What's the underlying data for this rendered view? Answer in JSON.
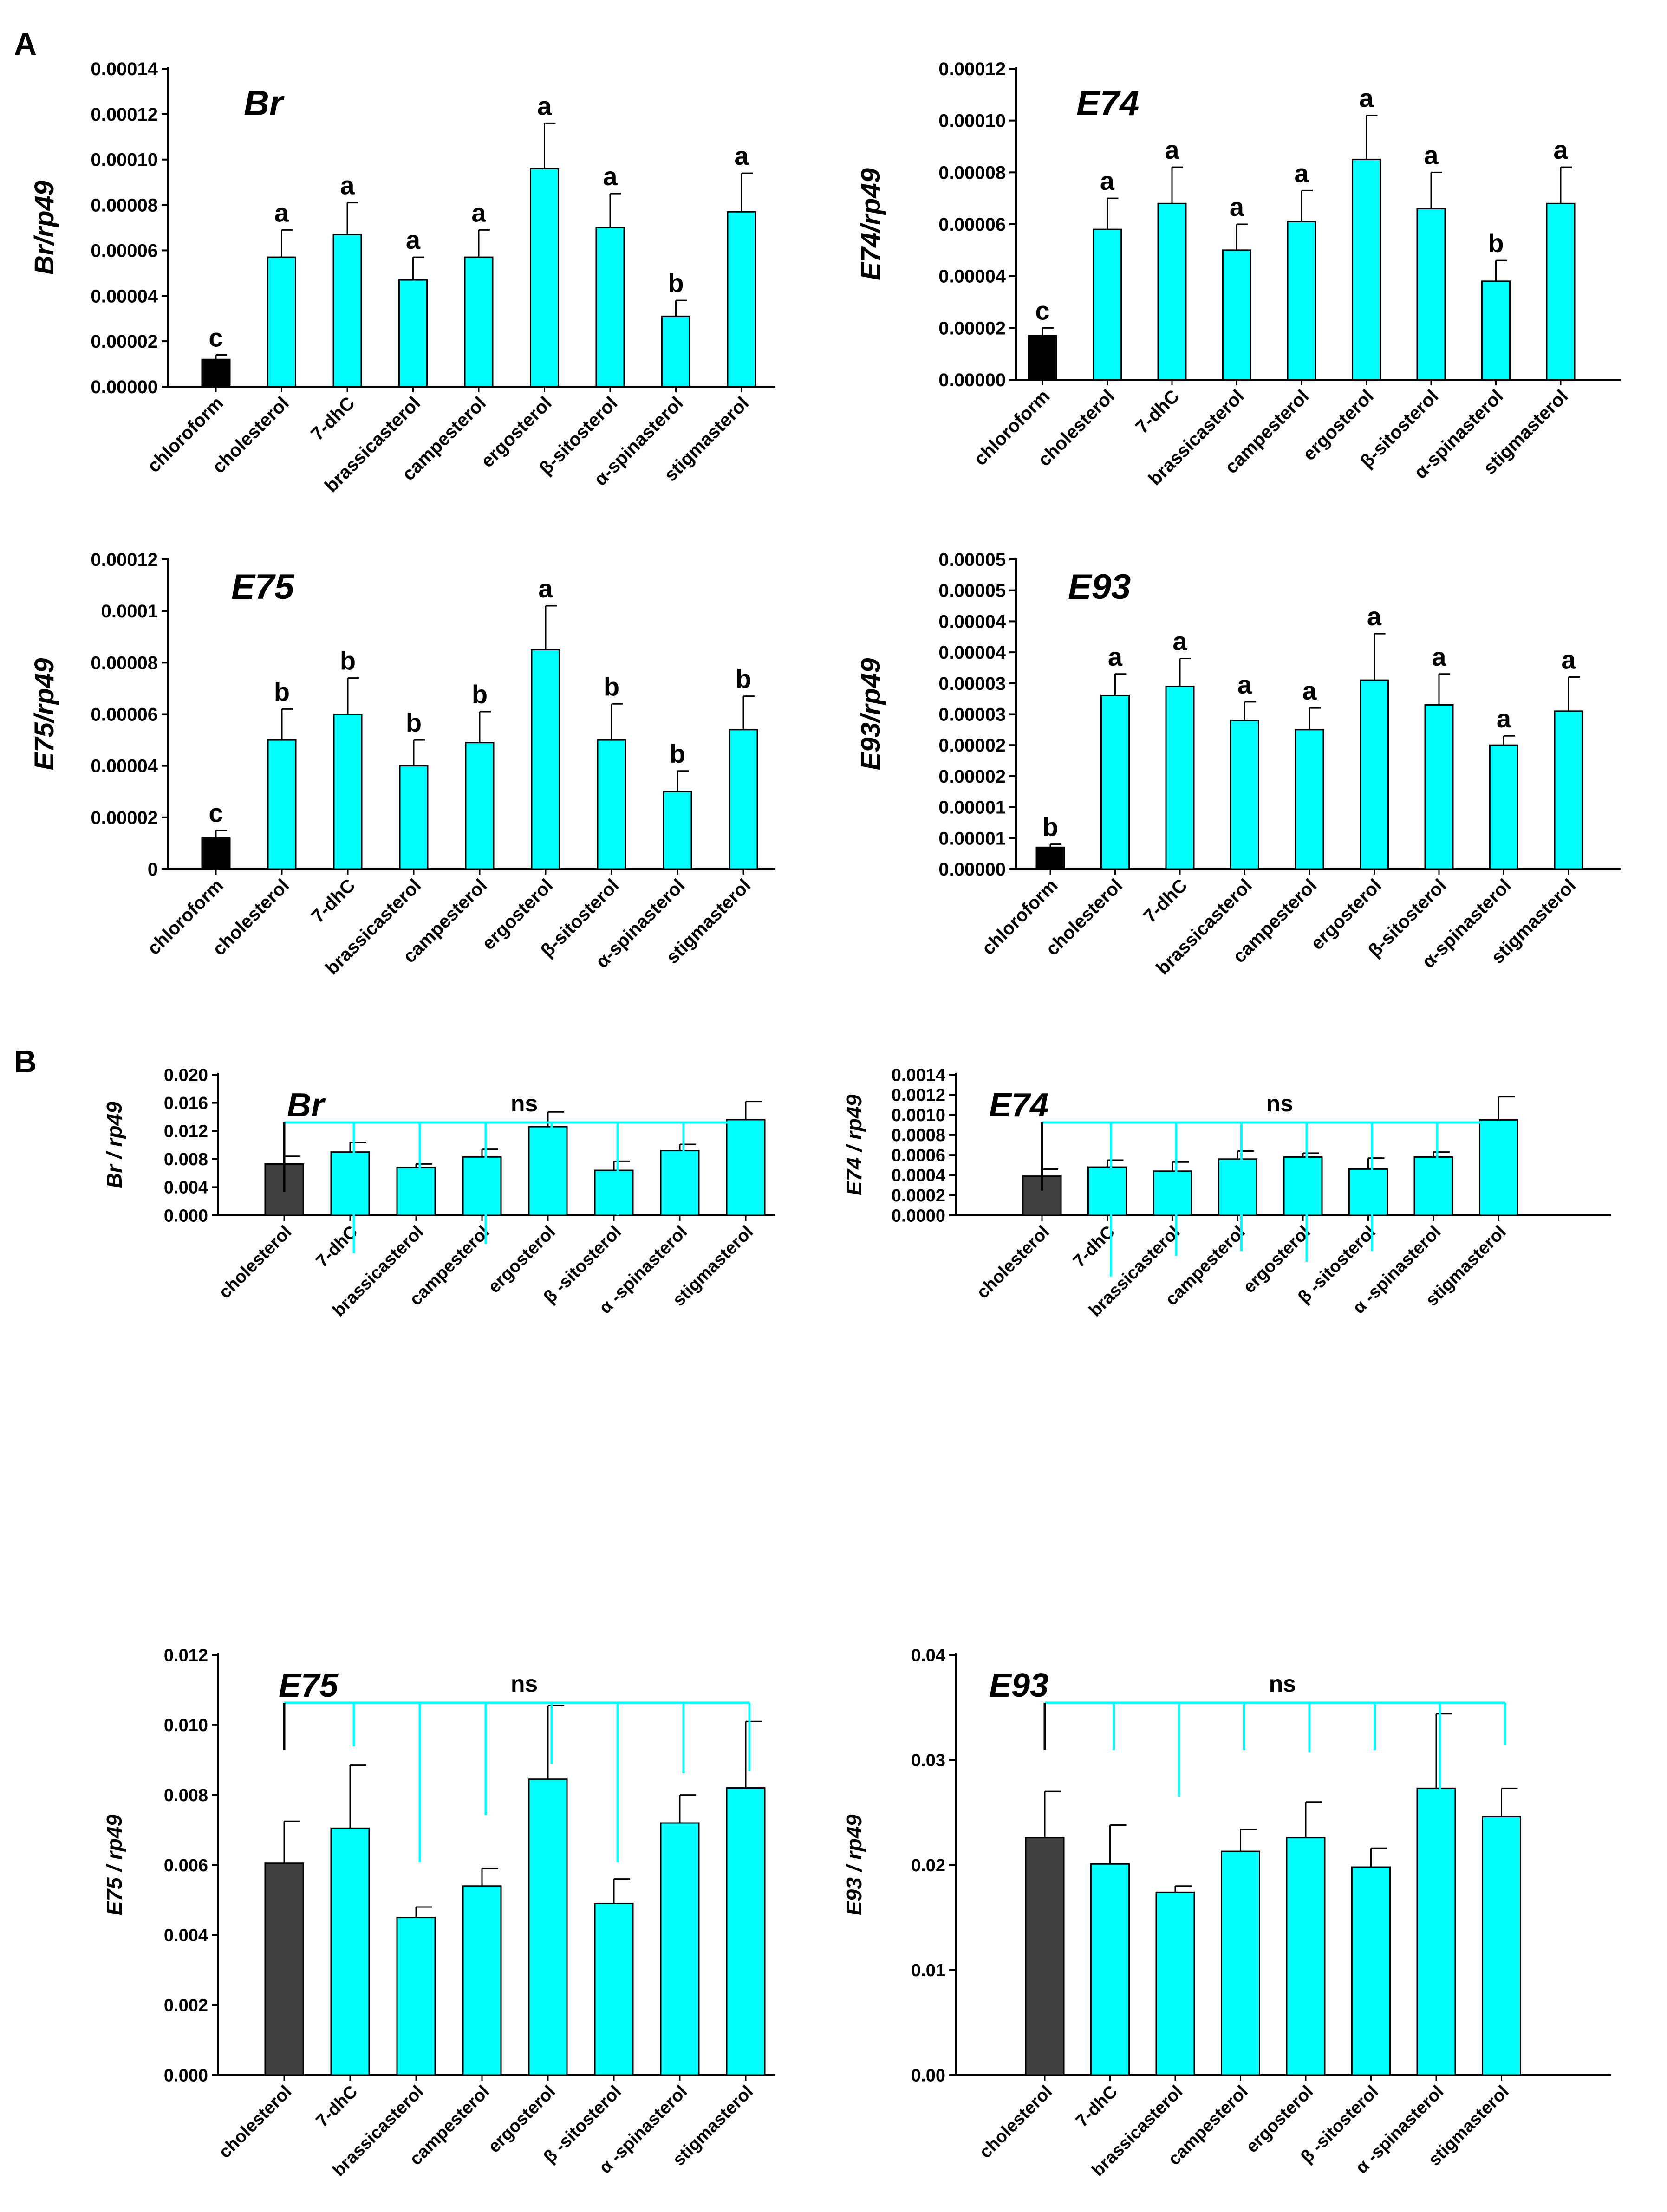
{
  "figure": {
    "panel_labels": [
      "A",
      "B"
    ],
    "colors": {
      "bar_fill_control_A": "#000000",
      "bar_fill_control_B": "#404040",
      "bar_fill_treatment": "#00FFFF",
      "bar_stroke": "#000000",
      "bracket": "#00FFFF",
      "control_bracket": "#000000",
      "text": "#000000"
    }
  },
  "chart_data": [
    {
      "id": "A-Br",
      "panel": "A",
      "type": "bar",
      "title": "Br",
      "ylabel": "Br/rp49",
      "xlabel": "",
      "categories": [
        "chloroform",
        "cholesterol",
        "7-dhC",
        "brassicasterol",
        "campesterol",
        "ergosterol",
        "β-sitosterol",
        "α-spinasterol",
        "stigmasterol"
      ],
      "values": [
        1.2e-05,
        5.7e-05,
        6.7e-05,
        4.7e-05,
        5.7e-05,
        9.6e-05,
        7e-05,
        3.1e-05,
        7.7e-05
      ],
      "errors": [
        2e-06,
        1.2e-05,
        1.4e-05,
        1e-05,
        1.2e-05,
        2e-05,
        1.5e-05,
        7e-06,
        1.7e-05
      ],
      "annotations": [
        "c",
        "a",
        "a",
        "a",
        "a",
        "a",
        "a",
        "b",
        "a"
      ],
      "ylim": [
        0,
        0.00014
      ],
      "yticks": [
        "0.00000",
        "0.00002",
        "0.00004",
        "0.00006",
        "0.00008",
        "0.00010",
        "0.00012",
        "0.00014"
      ]
    },
    {
      "id": "A-E74",
      "panel": "A",
      "type": "bar",
      "title": "E74",
      "ylabel": "E74/rp49",
      "xlabel": "",
      "categories": [
        "chloroform",
        "cholesterol",
        "7-dhC",
        "brassicasterol",
        "campesterol",
        "ergosterol",
        "β-sitosterol",
        "α-spinasterol",
        "stigmasterol"
      ],
      "values": [
        1.7e-05,
        5.8e-05,
        6.8e-05,
        5e-05,
        6.1e-05,
        8.5e-05,
        6.6e-05,
        3.8e-05,
        6.8e-05
      ],
      "errors": [
        3e-06,
        1.2e-05,
        1.4e-05,
        1e-05,
        1.2e-05,
        1.7e-05,
        1.4e-05,
        8e-06,
        1.4e-05
      ],
      "annotations": [
        "c",
        "a",
        "a",
        "a",
        "a",
        "a",
        "a",
        "b",
        "a"
      ],
      "ylim": [
        0,
        0.00012
      ],
      "yticks": [
        "0.00000",
        "0.00002",
        "0.00004",
        "0.00006",
        "0.00008",
        "0.00010",
        "0.00012"
      ]
    },
    {
      "id": "A-E75",
      "panel": "A",
      "type": "bar",
      "title": "E75",
      "ylabel": "E75/rp49",
      "xlabel": "",
      "categories": [
        "chloroform",
        "cholesterol",
        "7-dhC",
        "brassicasterol",
        "campesterol",
        "ergosterol",
        "β-sitosterol",
        "α-spinasterol",
        "stigmasterol"
      ],
      "values": [
        1.2e-05,
        5e-05,
        6e-05,
        4e-05,
        4.9e-05,
        8.5e-05,
        5e-05,
        3e-05,
        5.4e-05
      ],
      "errors": [
        3e-06,
        1.2e-05,
        1.4e-05,
        1e-05,
        1.2e-05,
        1.7e-05,
        1.4e-05,
        8e-06,
        1.3e-05
      ],
      "annotations": [
        "c",
        "b",
        "b",
        "b",
        "b",
        "a",
        "b",
        "b",
        "b"
      ],
      "ylim": [
        0,
        0.00012
      ],
      "yticks": [
        "0",
        "0.00002",
        "0.00004",
        "0.00006",
        "0.00008",
        "0.0001",
        "0.00012"
      ]
    },
    {
      "id": "A-E93",
      "panel": "A",
      "type": "bar",
      "title": "E93",
      "ylabel": "E93/rp49",
      "xlabel": "",
      "categories": [
        "chloroform",
        "cholesterol",
        "7-dhC",
        "brassicasterol",
        "campesterol",
        "ergosterol",
        "β-sitosterol",
        "α-spinasterol",
        "stigmasterol"
      ],
      "values": [
        3.5e-06,
        2.8e-05,
        2.95e-05,
        2.4e-05,
        2.25e-05,
        3.05e-05,
        2.65e-05,
        2e-05,
        2.55e-05
      ],
      "errors": [
        5e-07,
        3.5e-06,
        4.5e-06,
        3e-06,
        3.5e-06,
        7.5e-06,
        5e-06,
        1.5e-06,
        5.5e-06
      ],
      "annotations": [
        "b",
        "a",
        "a",
        "a",
        "a",
        "a",
        "a",
        "a",
        "a"
      ],
      "ylim": [
        0,
        5e-05
      ],
      "yticks": [
        "0.00000",
        "0.00001",
        "0.00001",
        "0.00002",
        "0.00002",
        "0.00003",
        "0.00003",
        "0.00004",
        "0.00004",
        "0.00005",
        "0.00005"
      ]
    },
    {
      "id": "B-Br",
      "panel": "B",
      "type": "bar",
      "title": "Br",
      "ylabel": "Br / rp49",
      "xlabel": "",
      "significance": "ns",
      "categories": [
        "cholesterol",
        "7-dhC",
        "brassicasterol",
        "campesterol",
        "ergosterol",
        "β -sitosterol",
        "α -spinasterol",
        "stigmasterol"
      ],
      "values": [
        0.0073,
        0.009,
        0.0068,
        0.0083,
        0.0126,
        0.0064,
        0.0092,
        0.0136
      ],
      "errors": [
        0.0011,
        0.0014,
        0.0005,
        0.0011,
        0.0021,
        0.0013,
        0.0009,
        0.0026
      ],
      "ylim": [
        0,
        0.02
      ],
      "yticks": [
        "0.000",
        "0.004",
        "0.008",
        "0.012",
        "0.016",
        "0.020"
      ]
    },
    {
      "id": "B-E74",
      "panel": "B",
      "type": "bar",
      "title": "E74",
      "ylabel": "E74 / rp49",
      "xlabel": "",
      "significance": "ns",
      "categories": [
        "cholesterol",
        "7-dhC",
        "brassicasterol",
        "campesterol",
        "ergosterol",
        "β -sitosterol",
        "α -spinasterol",
        "stigmasterol"
      ],
      "values": [
        0.00039,
        0.00048,
        0.00044,
        0.00056,
        0.00058,
        0.00046,
        0.00058,
        0.00095
      ],
      "errors": [
        7e-05,
        7e-05,
        9e-05,
        8e-05,
        4e-05,
        0.00011,
        5e-05,
        0.00023
      ],
      "ylim": [
        0,
        0.0014
      ],
      "yticks": [
        "0.0000",
        "0.0002",
        "0.0004",
        "0.0006",
        "0.0008",
        "0.0010",
        "0.0012",
        "0.0014"
      ]
    },
    {
      "id": "B-E75",
      "panel": "B",
      "type": "bar",
      "title": "E75",
      "ylabel": "E75 / rp49",
      "xlabel": "",
      "significance": "ns",
      "categories": [
        "cholesterol",
        "7-dhC",
        "brassicasterol",
        "campesterol",
        "ergosterol",
        "β -sitosterol",
        "α -spinasterol",
        "stigmasterol"
      ],
      "values": [
        0.00605,
        0.00705,
        0.0045,
        0.0054,
        0.00845,
        0.0049,
        0.0072,
        0.0082
      ],
      "errors": [
        0.0012,
        0.0018,
        0.0003,
        0.0005,
        0.0021,
        0.0007,
        0.0008,
        0.0019
      ],
      "ylim": [
        0,
        0.012
      ],
      "yticks": [
        "0.000",
        "0.002",
        "0.004",
        "0.006",
        "0.008",
        "0.010",
        "0.012"
      ]
    },
    {
      "id": "B-E93",
      "panel": "B",
      "type": "bar",
      "title": "E93",
      "ylabel": "E93 / rp49",
      "xlabel": "",
      "significance": "ns",
      "categories": [
        "cholesterol",
        "7-dhC",
        "brassicasterol",
        "campesterol",
        "ergosterol",
        "β -sitosterol",
        "α -spinasterol",
        "stigmasterol"
      ],
      "values": [
        0.0226,
        0.0201,
        0.0174,
        0.0213,
        0.0226,
        0.0198,
        0.0273,
        0.0246
      ],
      "errors": [
        0.0044,
        0.0037,
        0.0006,
        0.0021,
        0.0034,
        0.0018,
        0.0071,
        0.0027
      ],
      "ylim": [
        0,
        0.04
      ],
      "yticks": [
        "0.00",
        "0.01",
        "0.02",
        "0.03",
        "0.04"
      ]
    }
  ]
}
